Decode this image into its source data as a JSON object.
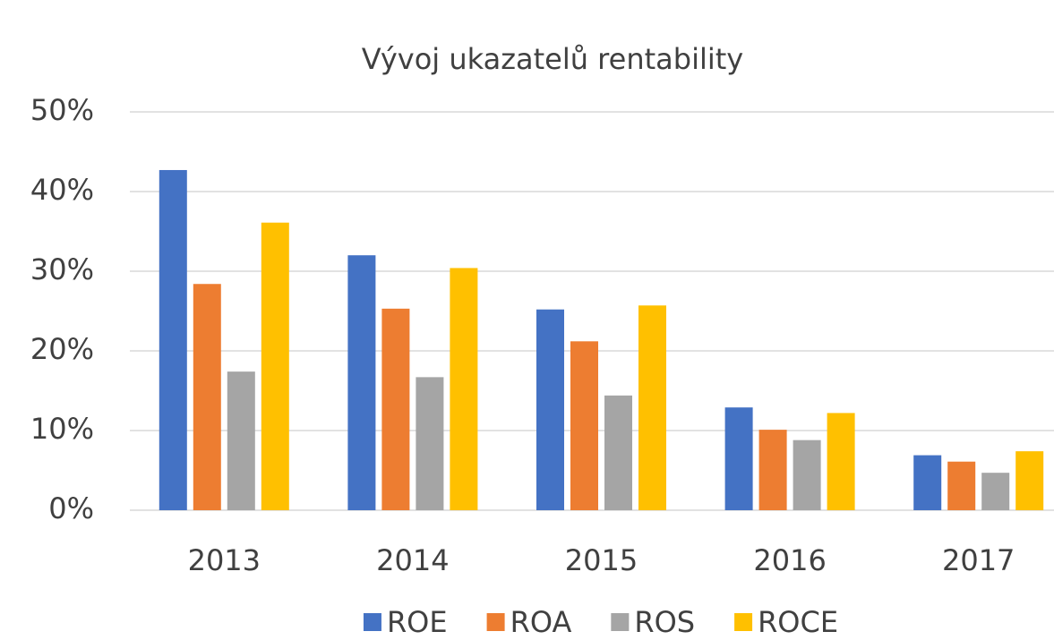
{
  "chart_data": {
    "type": "bar",
    "title": "Vývoj ukazatelů rentability",
    "categories": [
      "2013",
      "2014",
      "2015",
      "2016",
      "2017"
    ],
    "series": [
      {
        "name": "ROE",
        "color": "#4472c4",
        "values": [
          42.7,
          32.0,
          25.2,
          12.9,
          6.9
        ]
      },
      {
        "name": "ROA",
        "color": "#ed7d31",
        "values": [
          28.4,
          25.3,
          21.2,
          10.1,
          6.1
        ]
      },
      {
        "name": "ROS",
        "color": "#a5a5a5",
        "values": [
          17.4,
          16.7,
          14.4,
          8.8,
          4.7
        ]
      },
      {
        "name": "ROCE",
        "color": "#ffc000",
        "values": [
          36.1,
          30.4,
          25.7,
          12.2,
          7.4
        ]
      }
    ],
    "ylim": [
      0,
      50
    ],
    "yticks": [
      {
        "value": 0,
        "label": "0%"
      },
      {
        "value": 10,
        "label": "10%"
      },
      {
        "value": 20,
        "label": "20%"
      },
      {
        "value": 30,
        "label": "30%"
      },
      {
        "value": 40,
        "label": "40%"
      },
      {
        "value": 50,
        "label": "50%"
      }
    ],
    "grid": true,
    "legend": "bottom"
  }
}
